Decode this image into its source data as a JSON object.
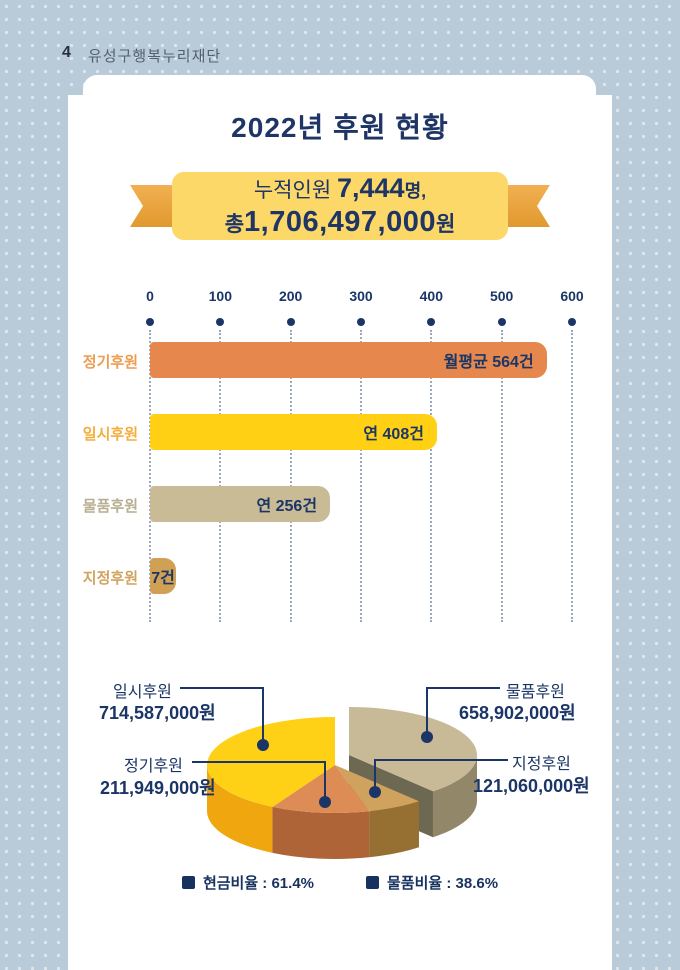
{
  "page": {
    "number": "4",
    "header": "유성구행복누리재단"
  },
  "title": "2022년 후원 현황",
  "banner": {
    "prefix1": "누적인원 ",
    "value1": "7,444",
    "suffix1": "명,",
    "prefix2": "총",
    "value2": "1,706,497,000",
    "suffix2": "원"
  },
  "colors": {
    "navy": "#1B3666",
    "title_navy": "#1E3565",
    "ribbon_panel": "#FCD869",
    "ribbon_tail": "#E8A33C",
    "background_blue": "#B9CAD9"
  },
  "chart_data": [
    {
      "type": "bar",
      "orientation": "horizontal",
      "title": "",
      "categories": [
        "정기후원",
        "일시후원",
        "물품후원",
        "지정후원"
      ],
      "values": [
        564,
        408,
        256,
        7
      ],
      "value_labels": [
        "월평균 564건",
        "연 408건",
        "연 256건",
        "7건"
      ],
      "bar_colors": [
        "#E6874D",
        "#FFD013",
        "#C9BB95",
        "#D0A055"
      ],
      "label_colors": [
        "#EE9D50",
        "#F4AE3C",
        "#B8AE90",
        "#CFA45F"
      ],
      "xlim": [
        0,
        600
      ],
      "x_ticks": [
        "0",
        "100",
        "200",
        "300",
        "400",
        "500",
        "600"
      ],
      "grid": "dotted-vertical"
    },
    {
      "type": "pie",
      "style": "3d-exploded",
      "start_angle": "top",
      "direction": "clockwise",
      "labels": [
        "물품후원",
        "지정후원",
        "정기후원",
        "일시후원"
      ],
      "values": [
        658902000,
        121060000,
        211949000,
        714587000
      ],
      "amount_labels": [
        "658,902,000원",
        "121,060,000원",
        "211,949,000원",
        "714,587,000원"
      ],
      "colors_top": [
        "#C8BA97",
        "#CFA25E",
        "#DE8C55",
        "#FFD116"
      ],
      "colors_side": [
        "#928769",
        "#957032",
        "#AE6436",
        "#F0A60E"
      ],
      "cut_face_color": "#6C6852",
      "exploded": [
        true,
        false,
        false,
        false
      ],
      "legend": [
        {
          "color": "#17325F",
          "label": "현금비율 : 61.4%"
        },
        {
          "color": "#17325F",
          "label": "물품비율 : 38.6%"
        }
      ]
    }
  ]
}
